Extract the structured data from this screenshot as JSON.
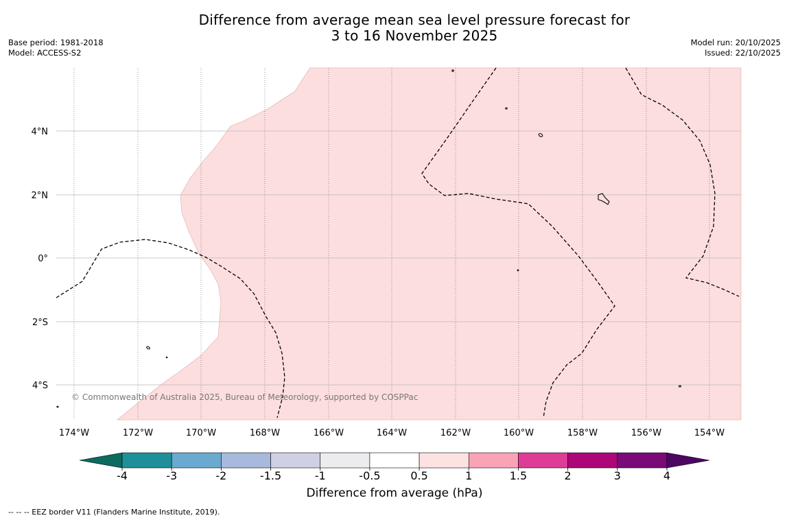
{
  "title_line1": "Difference from average mean sea level pressure forecast for",
  "title_line2": "3 to 16 November 2025",
  "base_period": "Base period: 1981-2018",
  "model": "Model: ACCESS-S2",
  "model_run": "Model run: 20/10/2025",
  "issued": "Issued: 22/10/2025",
  "credit": "© Commonwealth of Australia 2025, Bureau of Meteorology, supported by COSPPac",
  "footnote": "-- -- -- EEZ border V11 (Flanders Marine Institute, 2019).",
  "map": {
    "lat_labels": [
      "4°N",
      "2°N",
      "0°",
      "2°S",
      "4°S"
    ],
    "lon_labels": [
      "174°W",
      "172°W",
      "170°W",
      "168°W",
      "166°W",
      "164°W",
      "162°W",
      "160°W",
      "158°W",
      "156°W",
      "154°W"
    ],
    "anomaly_fill_color": "#fddede",
    "land_color": "#000000"
  },
  "colorbar": {
    "label": "Difference from average (hPa)",
    "tick_labels": [
      "-4",
      "-3",
      "-2",
      "-1.5",
      "-1",
      "-0.5",
      "0.5",
      "1",
      "1.5",
      "2",
      "3",
      "4"
    ],
    "low_extend_color": "#0b6b5f",
    "high_extend_color": "#4c0763",
    "bin_colors": [
      "#1f9099",
      "#6aa9d0",
      "#a7badd",
      "#cfd0e6",
      "#ececee",
      "#ffffff",
      "#fde2e2",
      "#f9a3b7",
      "#de3c96",
      "#ad0679",
      "#7a0a77"
    ]
  }
}
